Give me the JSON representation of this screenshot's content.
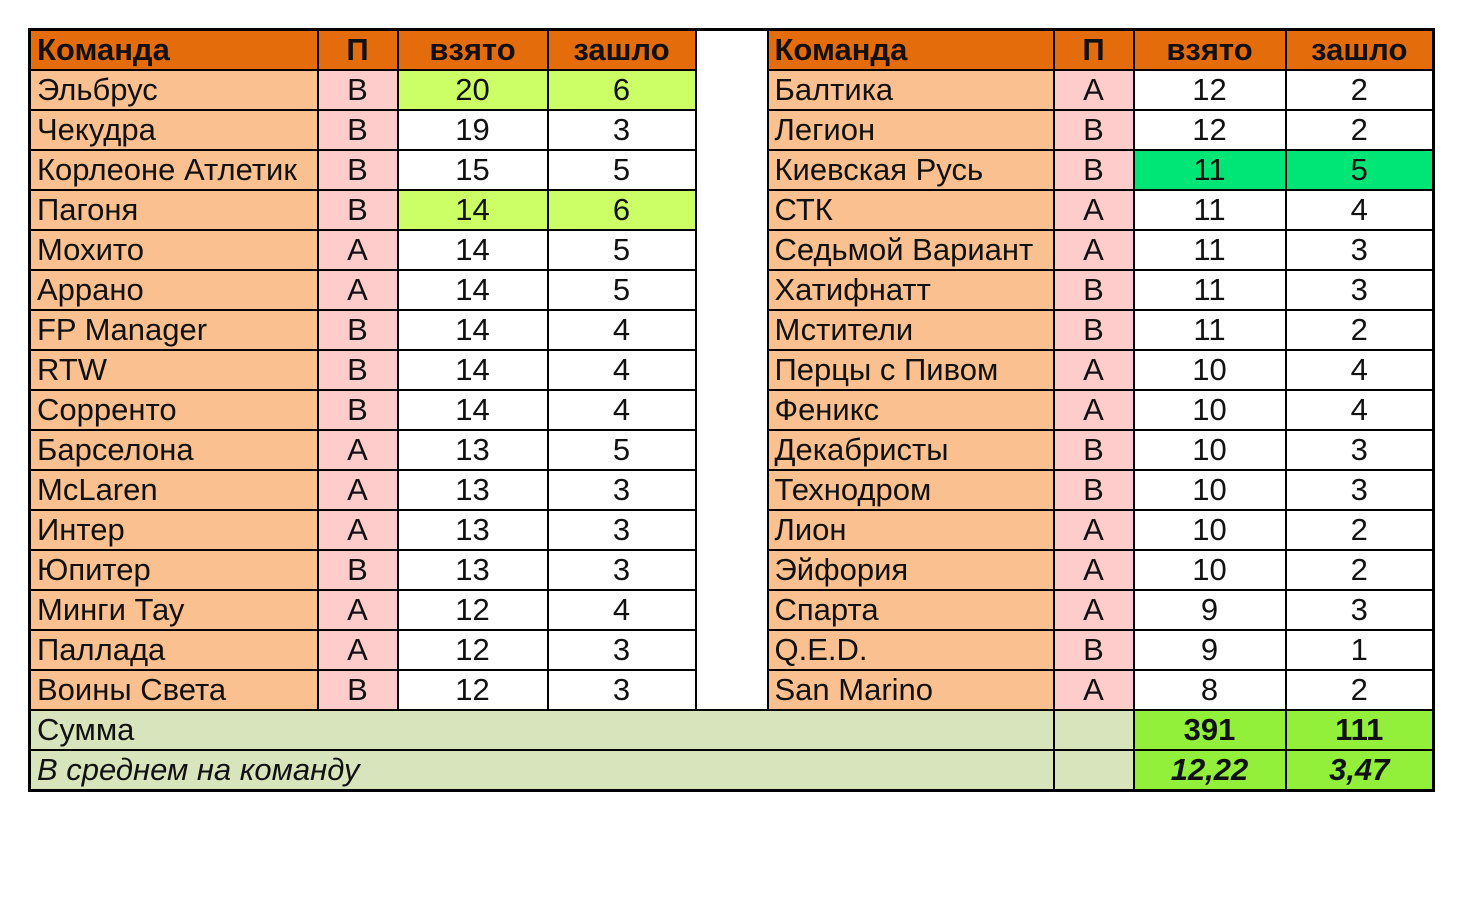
{
  "colors": {
    "header": "#e46c0a",
    "team_cell": "#fac090",
    "p_cell": "#ffcccc",
    "highlight_lime": "#ccff66",
    "highlight_green": "#00e676",
    "summary_label": "#d8e4bc",
    "summary_value": "#92f03a"
  },
  "headers": {
    "team": "Команда",
    "p": "П",
    "taken": "взято",
    "passed": "зашло"
  },
  "left_rows": [
    {
      "team": "Эльбрус",
      "p": "В",
      "taken": "20",
      "passed": "6",
      "highlight": "lime"
    },
    {
      "team": "Чекудра",
      "p": "В",
      "taken": "19",
      "passed": "3"
    },
    {
      "team": "Корлеоне Атлетик",
      "p": "В",
      "taken": "15",
      "passed": "5"
    },
    {
      "team": "Пагоня",
      "p": "В",
      "taken": "14",
      "passed": "6",
      "highlight": "lime"
    },
    {
      "team": "Мохито",
      "p": "А",
      "taken": "14",
      "passed": "5"
    },
    {
      "team": "Аррано",
      "p": "А",
      "taken": "14",
      "passed": "5"
    },
    {
      "team": "FP Manager",
      "p": "В",
      "taken": "14",
      "passed": "4"
    },
    {
      "team": "RTW",
      "p": "В",
      "taken": "14",
      "passed": "4"
    },
    {
      "team": "Сорренто",
      "p": "В",
      "taken": "14",
      "passed": "4"
    },
    {
      "team": "Барселона",
      "p": "А",
      "taken": "13",
      "passed": "5"
    },
    {
      "team": "McLaren",
      "p": "А",
      "taken": "13",
      "passed": "3"
    },
    {
      "team": "Интер",
      "p": "А",
      "taken": "13",
      "passed": "3"
    },
    {
      "team": "Юпитер",
      "p": "В",
      "taken": "13",
      "passed": "3"
    },
    {
      "team": "Минги Тау",
      "p": "А",
      "taken": "12",
      "passed": "4"
    },
    {
      "team": "Паллада",
      "p": "А",
      "taken": "12",
      "passed": "3"
    },
    {
      "team": "Воины Света",
      "p": "В",
      "taken": "12",
      "passed": "3"
    }
  ],
  "right_rows": [
    {
      "team": "Балтика",
      "p": "А",
      "taken": "12",
      "passed": "2"
    },
    {
      "team": "Легион",
      "p": "В",
      "taken": "12",
      "passed": "2"
    },
    {
      "team": "Киевская Русь",
      "p": "В",
      "taken": "11",
      "passed": "5",
      "highlight": "green"
    },
    {
      "team": "СТК",
      "p": "А",
      "taken": "11",
      "passed": "4"
    },
    {
      "team": "Седьмой Вариант",
      "p": "А",
      "taken": "11",
      "passed": "3"
    },
    {
      "team": "Хатифнатт",
      "p": "В",
      "taken": "11",
      "passed": "3"
    },
    {
      "team": "Мстители",
      "p": "В",
      "taken": "11",
      "passed": "2"
    },
    {
      "team": "Перцы с Пивом",
      "p": "А",
      "taken": "10",
      "passed": "4"
    },
    {
      "team": "Феникс",
      "p": "А",
      "taken": "10",
      "passed": "4"
    },
    {
      "team": "Декабристы",
      "p": "В",
      "taken": "10",
      "passed": "3"
    },
    {
      "team": "Технодром",
      "p": "В",
      "taken": "10",
      "passed": "3"
    },
    {
      "team": "Лион",
      "p": "А",
      "taken": "10",
      "passed": "2"
    },
    {
      "team": "Эйфория",
      "p": "А",
      "taken": "10",
      "passed": "2"
    },
    {
      "team": "Спарта",
      "p": "А",
      "taken": "9",
      "passed": "3"
    },
    {
      "team": "Q.E.D.",
      "p": "В",
      "taken": "9",
      "passed": "1"
    },
    {
      "team": "San Marino",
      "p": "А",
      "taken": "8",
      "passed": "2"
    }
  ],
  "summary": {
    "sum_label": "Сумма",
    "sum_taken": "391",
    "sum_passed": "111",
    "avg_label": "В среднем на команду",
    "avg_taken": "12,22",
    "avg_passed": "3,47"
  }
}
